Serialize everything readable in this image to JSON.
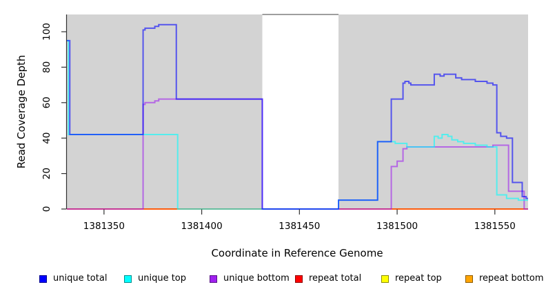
{
  "chart_data": {
    "type": "line",
    "line_style": "step-after",
    "title": "",
    "xlabel": "Coordinate in Reference Genome",
    "ylabel": "Read Coverage Depth",
    "xlim": [
      1381331,
      1381567
    ],
    "ylim": [
      -3,
      110
    ],
    "x_ticks": [
      1381350,
      1381400,
      1381450,
      1381500,
      1381550
    ],
    "y_ticks": [
      0,
      20,
      40,
      60,
      80,
      100
    ],
    "grid": false,
    "legend_position": "bottom",
    "panel_bg": "#d3d3d3",
    "axis_color": "#303030",
    "line_alpha": 0.6,
    "line_width": 2,
    "masked_region": {
      "x_start": 1381431,
      "x_end": 1381470,
      "fill": "#ffffff",
      "border_top_color": "#7f7f7f"
    },
    "series": [
      {
        "name": "unique total",
        "color": "#0000FF",
        "draw_order": 6,
        "steps": [
          [
            1381331,
            95
          ],
          [
            1381332.5,
            42
          ],
          [
            1381370,
            101
          ],
          [
            1381371,
            102
          ],
          [
            1381376,
            103
          ],
          [
            1381378,
            104
          ],
          [
            1381387,
            62
          ],
          [
            1381431,
            0
          ],
          [
            1381470,
            5
          ],
          [
            1381490,
            38
          ],
          [
            1381497,
            62
          ],
          [
            1381503,
            71
          ],
          [
            1381504,
            72
          ],
          [
            1381506,
            71
          ],
          [
            1381507,
            70
          ],
          [
            1381519,
            76
          ],
          [
            1381522,
            75
          ],
          [
            1381524,
            76
          ],
          [
            1381530,
            74
          ],
          [
            1381533,
            73
          ],
          [
            1381540,
            72
          ],
          [
            1381546,
            71
          ],
          [
            1381549,
            70
          ],
          [
            1381551,
            43
          ],
          [
            1381553,
            41
          ],
          [
            1381556,
            40
          ],
          [
            1381559,
            15
          ],
          [
            1381564,
            7
          ],
          [
            1381566,
            6
          ]
        ]
      },
      {
        "name": "unique top",
        "color": "#00FFFF",
        "draw_order": 5,
        "steps": [
          [
            1381331,
            95
          ],
          [
            1381331.8,
            42
          ],
          [
            1381387.7,
            0
          ],
          [
            1381470,
            5
          ],
          [
            1381490,
            38
          ],
          [
            1381499,
            37
          ],
          [
            1381505,
            35
          ],
          [
            1381519,
            41
          ],
          [
            1381521,
            40
          ],
          [
            1381523,
            42
          ],
          [
            1381526,
            41
          ],
          [
            1381528,
            39
          ],
          [
            1381531,
            38
          ],
          [
            1381534,
            37
          ],
          [
            1381540,
            36
          ],
          [
            1381546,
            35
          ],
          [
            1381551,
            8
          ],
          [
            1381556,
            6
          ],
          [
            1381562,
            5
          ]
        ]
      },
      {
        "name": "unique bottom",
        "color": "#A020F0",
        "draw_order": 4,
        "steps": [
          [
            1381331,
            0
          ],
          [
            1381370,
            59
          ],
          [
            1381371,
            60
          ],
          [
            1381376,
            61
          ],
          [
            1381378,
            62
          ],
          [
            1381431,
            0
          ],
          [
            1381497,
            24
          ],
          [
            1381500,
            27
          ],
          [
            1381503,
            34
          ],
          [
            1381505,
            35
          ],
          [
            1381549,
            36
          ],
          [
            1381557,
            10
          ],
          [
            1381565,
            0
          ]
        ]
      },
      {
        "name": "repeat total",
        "color": "#FF0000",
        "draw_order": 3,
        "steps": [
          [
            1381331,
            0
          ]
        ]
      },
      {
        "name": "repeat top",
        "color": "#FFFF00",
        "draw_order": 2,
        "steps": [
          [
            1381331,
            0
          ]
        ]
      },
      {
        "name": "repeat bottom",
        "color": "#FFA500",
        "draw_order": 1,
        "steps": [
          [
            1381331,
            0
          ]
        ]
      }
    ]
  },
  "legend": {
    "position": "bottom",
    "items": [
      {
        "label": "unique total",
        "color": "#0000FF"
      },
      {
        "label": "unique top",
        "color": "#00FFFF"
      },
      {
        "label": "unique bottom",
        "color": "#A020F0"
      },
      {
        "label": "repeat total",
        "color": "#FF0000"
      },
      {
        "label": "repeat top",
        "color": "#FFFF00"
      },
      {
        "label": "repeat bottom",
        "color": "#FFA500"
      }
    ]
  }
}
